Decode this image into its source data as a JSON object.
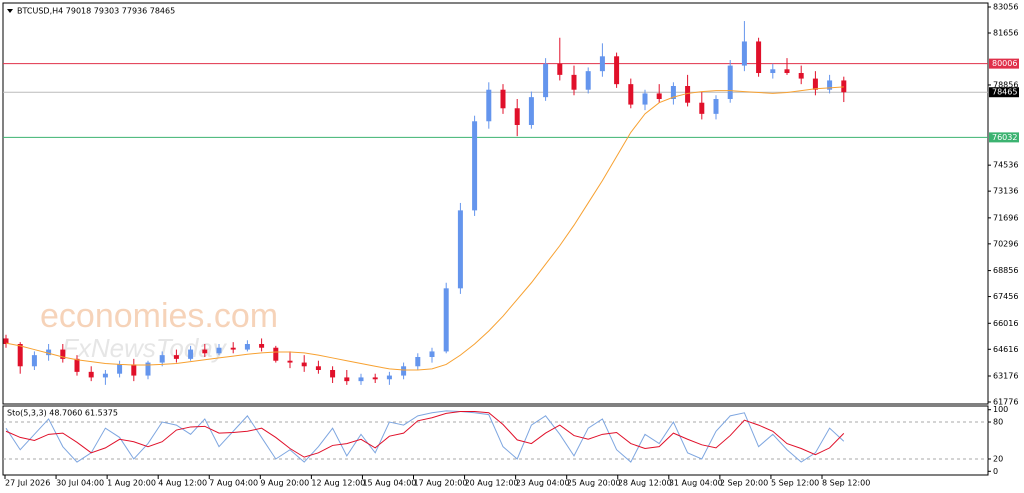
{
  "watermark": [
    "economies.com",
    "FxNewsToday"
  ],
  "chart_data": [
    {
      "type": "candlestick",
      "title": "BTCUSD,H4  79018 79303 77936 78465",
      "up_color": "#6495ed",
      "down_color": "#e0102a",
      "ohlc": [
        [
          65200,
          65400,
          64700,
          64900
        ],
        [
          64900,
          65000,
          63300,
          63700
        ],
        [
          63700,
          64500,
          63500,
          64300
        ],
        [
          64300,
          64900,
          64000,
          64600
        ],
        [
          64600,
          64900,
          63900,
          64100
        ],
        [
          64100,
          64300,
          63200,
          63400
        ],
        [
          63400,
          63700,
          62900,
          63100
        ],
        [
          63100,
          63500,
          62700,
          63300
        ],
        [
          63300,
          64000,
          63100,
          63800
        ],
        [
          63800,
          64100,
          62900,
          63200
        ],
        [
          63200,
          64000,
          63000,
          63900
        ],
        [
          63900,
          64500,
          63700,
          64300
        ],
        [
          64300,
          64600,
          63900,
          64100
        ],
        [
          64100,
          64800,
          64000,
          64600
        ],
        [
          64600,
          64900,
          64200,
          64400
        ],
        [
          64400,
          64900,
          64300,
          64700
        ],
        [
          64700,
          65000,
          64400,
          64600
        ],
        [
          64600,
          65100,
          64500,
          64900
        ],
        [
          64900,
          65200,
          64500,
          64700
        ],
        [
          64700,
          64800,
          63900,
          64000
        ],
        [
          64000,
          64500,
          63600,
          63900
        ],
        [
          63900,
          64300,
          63400,
          63700
        ],
        [
          63700,
          64000,
          63300,
          63500
        ],
        [
          63500,
          63700,
          62800,
          63100
        ],
        [
          63100,
          63500,
          62700,
          62900
        ],
        [
          62900,
          63300,
          62700,
          63100
        ],
        [
          63100,
          63300,
          62800,
          63000
        ],
        [
          63000,
          63400,
          62700,
          63200
        ],
        [
          63200,
          63900,
          63000,
          63700
        ],
        [
          63700,
          64400,
          63500,
          64200
        ],
        [
          64200,
          64700,
          63900,
          64500
        ],
        [
          64500,
          68200,
          64400,
          67900
        ],
        [
          67900,
          72500,
          67600,
          72100
        ],
        [
          72100,
          77200,
          71800,
          76900
        ],
        [
          76900,
          79000,
          76500,
          78600
        ],
        [
          78600,
          78900,
          77300,
          77600
        ],
        [
          77600,
          78100,
          76100,
          76700
        ],
        [
          76700,
          78500,
          76500,
          78200
        ],
        [
          78200,
          80300,
          78000,
          80000
        ],
        [
          80000,
          81400,
          79100,
          79400
        ],
        [
          79400,
          79900,
          78300,
          78600
        ],
        [
          78600,
          79800,
          78400,
          79600
        ],
        [
          79600,
          81100,
          79300,
          80400
        ],
        [
          80400,
          80600,
          78700,
          78900
        ],
        [
          78900,
          79200,
          77600,
          77800
        ],
        [
          77800,
          78600,
          77500,
          78400
        ],
        [
          78400,
          78900,
          77900,
          78100
        ],
        [
          78100,
          79000,
          77800,
          78800
        ],
        [
          78800,
          79400,
          77700,
          77900
        ],
        [
          77900,
          78500,
          77000,
          77300
        ],
        [
          77300,
          78300,
          77000,
          78100
        ],
        [
          78100,
          80200,
          77900,
          79900
        ],
        [
          79900,
          82300,
          79600,
          81200
        ],
        [
          81200,
          81400,
          79300,
          79500
        ],
        [
          79500,
          80000,
          79200,
          79700
        ],
        [
          79700,
          80300,
          79400,
          79500
        ],
        [
          79500,
          79900,
          78900,
          79200
        ],
        [
          79200,
          79600,
          78300,
          78600
        ],
        [
          78600,
          79400,
          78400,
          79100
        ],
        [
          79100,
          79303,
          77936,
          78465
        ]
      ],
      "ma": {
        "color": "#f7a131",
        "values": [
          64950,
          64800,
          64600,
          64400,
          64200,
          64050,
          63950,
          63850,
          63800,
          63770,
          63770,
          63800,
          63850,
          63950,
          64050,
          64150,
          64250,
          64350,
          64420,
          64470,
          64470,
          64420,
          64300,
          64150,
          64000,
          63850,
          63700,
          63560,
          63500,
          63500,
          63560,
          63800,
          64300,
          64900,
          65600,
          66400,
          67300,
          68200,
          69200,
          70200,
          71300,
          72500,
          73700,
          75000,
          76300,
          77300,
          77900,
          78200,
          78400,
          78500,
          78550,
          78550,
          78500,
          78450,
          78400,
          78450,
          78550,
          78650,
          78700,
          78750
        ]
      },
      "levels": [
        {
          "value": 80006,
          "color": "#e0304a"
        },
        {
          "value": 76032,
          "color": "#3cb371"
        }
      ],
      "last": {
        "value": 78465,
        "color": "#000000"
      },
      "ylim": [
        61668,
        83272
      ],
      "yticks": [
        83056,
        81656,
        78856,
        74536,
        73136,
        71696,
        70296,
        68856,
        67456,
        66016,
        64616,
        63176,
        61776
      ],
      "x_labels": [
        "27 Jul 2026",
        "30 Jul 04:00",
        "1 Aug 20:00",
        "4 Aug 12:00",
        "7 Aug 04:00",
        "9 Aug 20:00",
        "12 Aug 12:00",
        "15 Aug 04:00",
        "17 Aug 20:00",
        "20 Aug 12:00",
        "23 Aug 04:00",
        "25 Aug 20:00",
        "28 Aug 12:00",
        "31 Aug 04:00",
        "2 Sep 20:00",
        "5 Sep 12:00",
        "8 Sep 12:00"
      ]
    },
    {
      "type": "line",
      "title": "Sto(5,3,3) 48.7060 61.5375",
      "series": [
        {
          "color": "#7ea6e0",
          "values": [
            70,
            35,
            60,
            85,
            40,
            15,
            30,
            70,
            55,
            20,
            45,
            80,
            75,
            60,
            85,
            40,
            65,
            90,
            55,
            20,
            35,
            15,
            40,
            70,
            25,
            60,
            30,
            80,
            75,
            90,
            95,
            98,
            97,
            95,
            92,
            40,
            20,
            75,
            90,
            60,
            25,
            70,
            85,
            35,
            15,
            60,
            45,
            80,
            30,
            20,
            65,
            90,
            95,
            40,
            60,
            35,
            15,
            30,
            70,
            48.706
          ]
        },
        {
          "color": "#e0102a",
          "values": [
            65,
            55,
            50,
            60,
            62,
            47,
            30,
            38,
            52,
            48,
            40,
            48,
            67,
            72,
            73,
            62,
            63,
            65,
            70,
            55,
            37,
            23,
            30,
            42,
            45,
            52,
            38,
            57,
            62,
            82,
            87,
            94,
            97,
            97,
            95,
            76,
            51,
            45,
            62,
            75,
            58,
            52,
            60,
            63,
            45,
            37,
            40,
            62,
            52,
            43,
            38,
            58,
            83,
            75,
            65,
            45,
            37,
            27,
            38,
            61.5375
          ]
        }
      ],
      "ylim": [
        -6,
        106
      ],
      "yticks": [
        100,
        80,
        20,
        0
      ],
      "levels": [
        80,
        20
      ]
    }
  ]
}
